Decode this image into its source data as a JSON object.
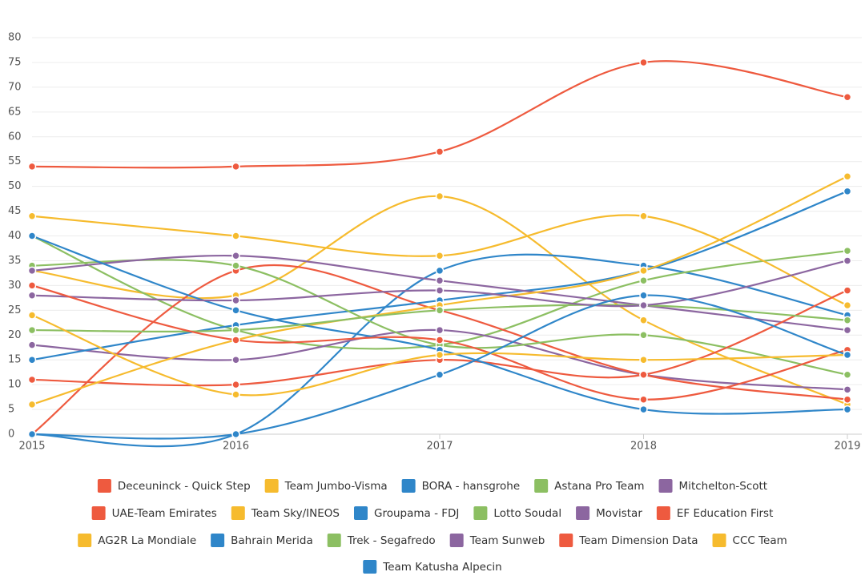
{
  "chart_data": {
    "type": "line",
    "categories": [
      "2015",
      "2016",
      "2017",
      "2018",
      "2019"
    ],
    "ylim": [
      0,
      80
    ],
    "yticks": [
      0,
      5,
      10,
      15,
      20,
      25,
      30,
      35,
      40,
      45,
      50,
      55,
      60,
      65,
      70,
      75,
      80
    ],
    "grid": true,
    "series": [
      {
        "name": "Deceuninck - Quick Step",
        "color": "#ee5a3f",
        "values": [
          54,
          54,
          57,
          75,
          68
        ]
      },
      {
        "name": "Team Jumbo-Visma",
        "color": "#f6bb2e",
        "values": [
          33,
          28,
          48,
          23,
          6
        ]
      },
      {
        "name": "BORA - hansgrohe",
        "color": "#2f86c9",
        "values": [
          0,
          0,
          33,
          34,
          24
        ]
      },
      {
        "name": "Astana Pro Team",
        "color": "#8cbf62",
        "values": [
          40,
          21,
          18,
          31,
          37
        ]
      },
      {
        "name": "Mitchelton-Scott",
        "color": "#8c66a0",
        "values": [
          18,
          15,
          21,
          12,
          9
        ]
      },
      {
        "name": "UAE-Team Emirates",
        "color": "#ee5a3f",
        "values": [
          0,
          33,
          25,
          12,
          7
        ]
      },
      {
        "name": "Team Sky/INEOS",
        "color": "#f6bb2e",
        "values": [
          44,
          40,
          36,
          44,
          26
        ]
      },
      {
        "name": "Groupama - FDJ",
        "color": "#2f86c9",
        "values": [
          15,
          22,
          27,
          33,
          49
        ]
      },
      {
        "name": "Lotto Soudal",
        "color": "#8cbf62",
        "values": [
          34,
          34,
          18,
          20,
          12
        ]
      },
      {
        "name": "Movistar",
        "color": "#8c66a0",
        "values": [
          33,
          36,
          31,
          26,
          21
        ]
      },
      {
        "name": "EF Education First",
        "color": "#ee5a3f",
        "values": [
          11,
          10,
          15,
          12,
          29
        ]
      },
      {
        "name": "AG2R La Mondiale",
        "color": "#f6bb2e",
        "values": [
          6,
          19,
          26,
          33,
          52
        ]
      },
      {
        "name": "Bahrain Merida",
        "color": "#2f86c9",
        "values": [
          40,
          25,
          17,
          5,
          5
        ]
      },
      {
        "name": "Trek - Segafredo",
        "color": "#8cbf62",
        "values": [
          21,
          21,
          25,
          26,
          23
        ]
      },
      {
        "name": "Team Sunweb",
        "color": "#8c66a0",
        "values": [
          28,
          27,
          29,
          26,
          35
        ]
      },
      {
        "name": "Team Dimension Data",
        "color": "#ee5a3f",
        "values": [
          30,
          19,
          19,
          7,
          17
        ]
      },
      {
        "name": "CCC Team",
        "color": "#f6bb2e",
        "values": [
          24,
          8,
          16,
          15,
          16
        ]
      },
      {
        "name": "Team Katusha Alpecin",
        "color": "#2f86c9",
        "values": [
          0,
          0,
          12,
          28,
          16
        ]
      }
    ]
  }
}
